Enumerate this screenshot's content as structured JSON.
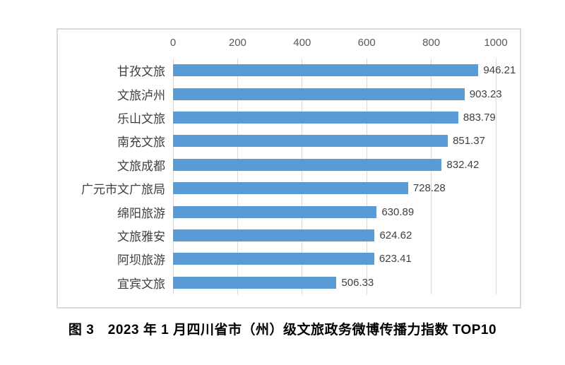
{
  "chart_data": {
    "type": "bar",
    "orientation": "horizontal",
    "title": "",
    "categories": [
      "甘孜文旅",
      "文旅泸州",
      "乐山文旅",
      "南充文旅",
      "文旅成都",
      "广元市文广旅局",
      "绵阳旅游",
      "文旅雅安",
      "阿坝旅游",
      "宜宾文旅"
    ],
    "values": [
      946.21,
      903.23,
      883.79,
      851.37,
      832.42,
      728.28,
      630.89,
      624.62,
      623.41,
      506.33
    ],
    "value_labels": [
      "946.21",
      "903.23",
      "883.79",
      "851.37",
      "832.42",
      "728.28",
      "630.89",
      "624.62",
      "623.41",
      "506.33"
    ],
    "xlabel": "",
    "ylabel": "",
    "xlim": [
      0,
      1000
    ],
    "x_ticks": [
      0,
      200,
      400,
      600,
      800,
      1000
    ],
    "x_tick_labels": [
      "0",
      "200",
      "400",
      "600",
      "800",
      "1000"
    ],
    "axis_position": "top",
    "grid": true,
    "legend": false,
    "bar_color": "#5b9bd5",
    "gridline_color": "#d9d9d9",
    "axis_text_color": "#595959"
  },
  "caption": "图 3　2023 年 1 月四川省市（州）级文旅政务微博传播力指数 TOP10"
}
